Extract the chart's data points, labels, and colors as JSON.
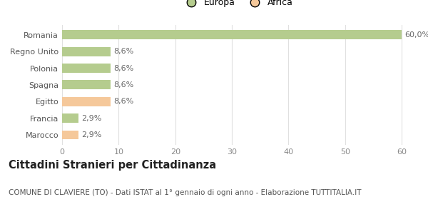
{
  "categories": [
    "Marocco",
    "Francia",
    "Egitto",
    "Spagna",
    "Polonia",
    "Regno Unito",
    "Romania"
  ],
  "values": [
    2.9,
    2.9,
    8.6,
    8.6,
    8.6,
    8.6,
    60.0
  ],
  "colors": [
    "#f5c89a",
    "#b5cc8e",
    "#f5c89a",
    "#b5cc8e",
    "#b5cc8e",
    "#b5cc8e",
    "#b5cc8e"
  ],
  "labels": [
    "2,9%",
    "2,9%",
    "8,6%",
    "8,6%",
    "8,6%",
    "8,6%",
    "60,0%"
  ],
  "xlim": [
    0,
    62
  ],
  "xticks": [
    0,
    10,
    20,
    30,
    40,
    50,
    60
  ],
  "legend_items": [
    {
      "label": "Europa",
      "color": "#b5cc8e"
    },
    {
      "label": "Africa",
      "color": "#f5c89a"
    }
  ],
  "title": "Cittadini Stranieri per Cittadinanza",
  "subtitle": "COMUNE DI CLAVIERE (TO) - Dati ISTAT al 1° gennaio di ogni anno - Elaborazione TUTTITALIA.IT",
  "background_color": "#ffffff",
  "grid_color": "#e0e0e0",
  "bar_height": 0.55,
  "label_fontsize": 8,
  "ytick_fontsize": 8,
  "xtick_fontsize": 8,
  "title_fontsize": 10.5,
  "subtitle_fontsize": 7.5
}
